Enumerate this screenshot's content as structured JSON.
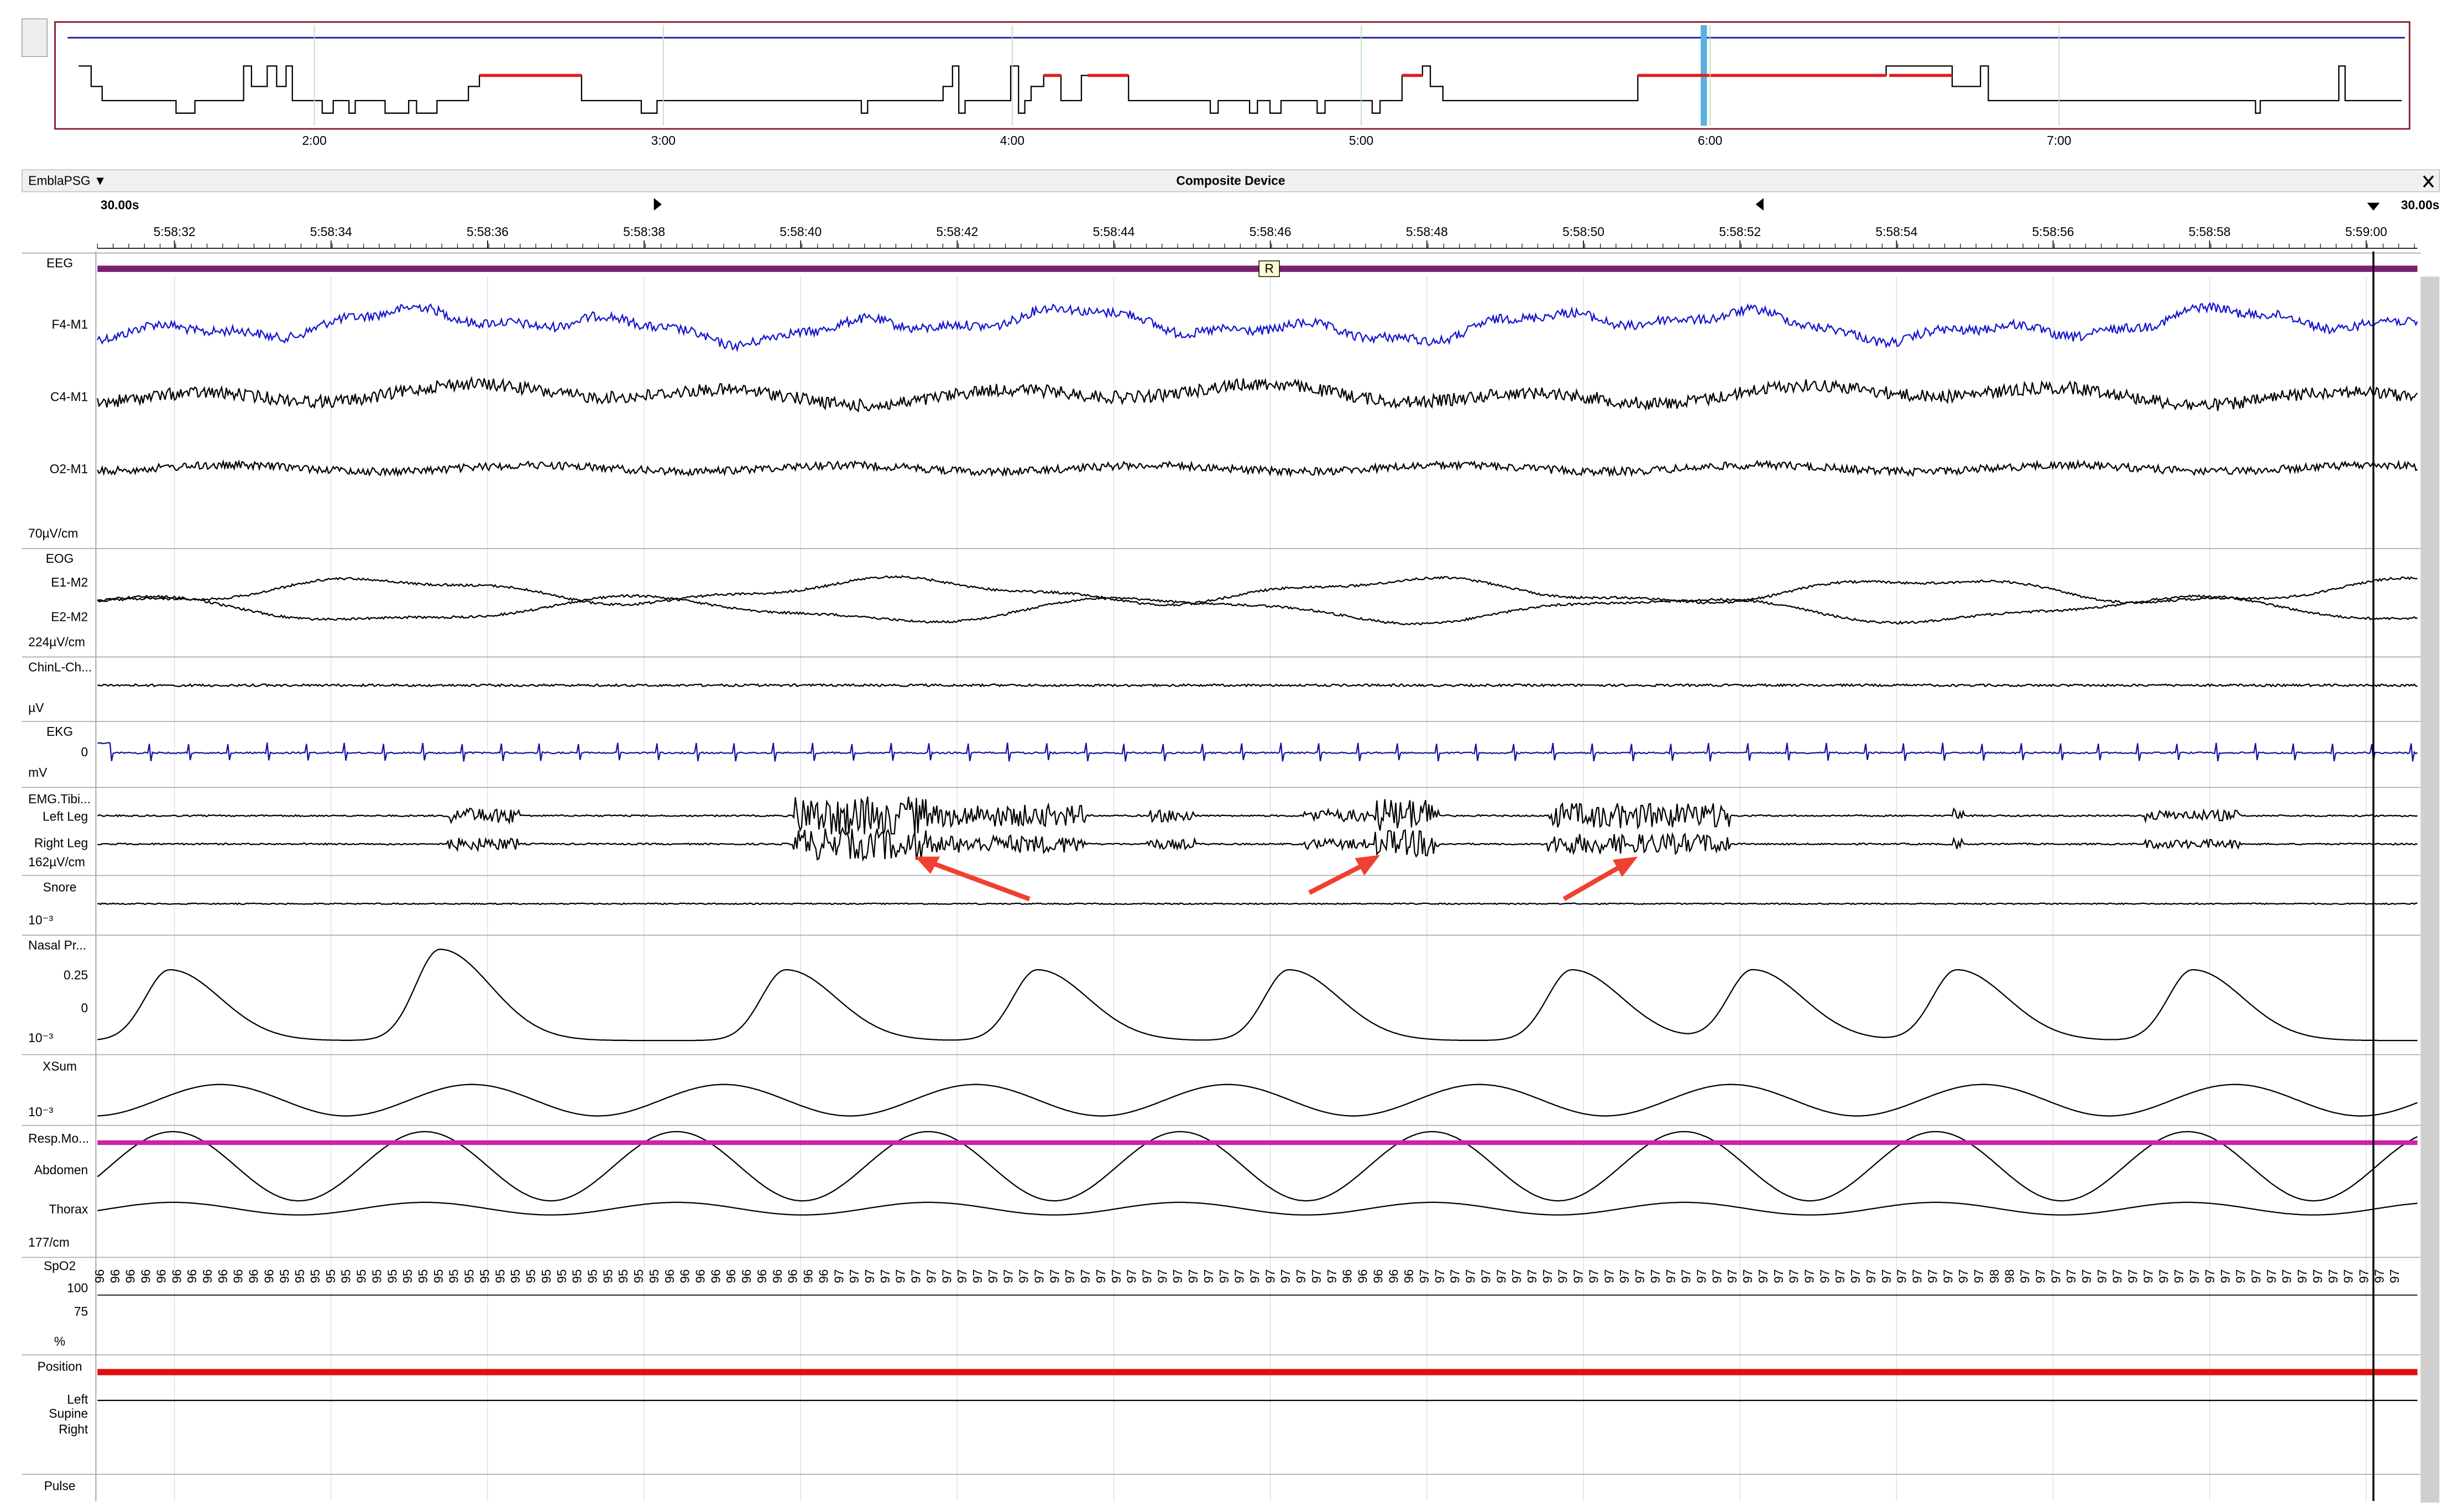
{
  "overview": {
    "time_labels": [
      "2:00",
      "3:00",
      "4:00",
      "5:00",
      "6:00",
      "7:00"
    ]
  },
  "toolbar": {
    "device": "EmblaPSG ▼",
    "title": "Composite Device"
  },
  "timebar": {
    "window_left": "30.00s",
    "window_right": "30.00s",
    "times": [
      "5:58:32",
      "5:58:34",
      "5:58:36",
      "5:58:38",
      "5:58:40",
      "5:58:42",
      "5:58:44",
      "5:58:46",
      "5:58:48",
      "5:58:50",
      "5:58:52",
      "5:58:54",
      "5:58:56",
      "5:58:58",
      "5:59:00"
    ]
  },
  "event_marker": "R",
  "channel_labels": [
    "EEG",
    "F4-M1",
    "C4-M1",
    "O2-M1",
    "70µV/cm",
    "EOG",
    "E1-M2",
    "E2-M2",
    "224µV/cm",
    "ChinL-Ch...",
    "µV",
    "EKG",
    "0",
    "mV",
    "EMG.Tibi...",
    "Left Leg",
    "Right Leg",
    "162µV/cm",
    "Snore",
    "10⁻³",
    "Nasal Pr...",
    "0.25",
    "0",
    "10⁻³",
    "XSum",
    "10⁻³",
    "Resp.Mo...",
    "Abdomen",
    "Thorax",
    "177/cm",
    "SpO2",
    "100",
    "75",
    "%",
    "Position",
    "Left",
    "Supine",
    "Right",
    "Pulse"
  ],
  "spo2": {
    "readings": [
      96,
      96,
      96,
      96,
      96,
      96,
      96,
      96,
      96,
      96,
      96,
      96,
      95,
      95,
      95,
      95,
      95,
      95,
      95,
      95,
      95,
      95,
      95,
      95,
      95,
      95,
      95,
      95,
      95,
      95,
      95,
      95,
      95,
      95,
      95,
      95,
      95,
      96,
      96,
      96,
      96,
      96,
      96,
      96,
      96,
      96,
      96,
      96,
      97,
      97,
      97,
      97,
      97,
      97,
      97,
      97,
      97,
      97,
      97,
      97,
      97,
      97,
      97,
      97,
      97,
      97,
      97,
      97,
      97,
      97,
      97,
      97,
      97,
      97,
      97,
      97,
      97,
      97,
      97,
      97,
      97,
      96,
      96,
      96,
      96,
      96,
      97,
      97,
      97,
      97,
      97,
      97,
      97,
      97,
      97,
      97,
      97,
      97,
      97,
      97,
      97,
      97,
      97,
      97,
      97,
      97,
      97,
      97,
      97,
      97,
      97,
      97,
      97,
      97,
      97,
      97,
      97,
      97,
      97,
      97,
      97,
      97,
      97,
      98,
      98,
      97,
      97,
      97,
      97,
      97,
      97,
      97,
      97,
      97,
      97,
      97,
      97,
      97,
      97,
      97,
      97,
      97,
      97,
      97,
      97,
      97,
      97,
      97,
      97,
      97
    ]
  }
}
